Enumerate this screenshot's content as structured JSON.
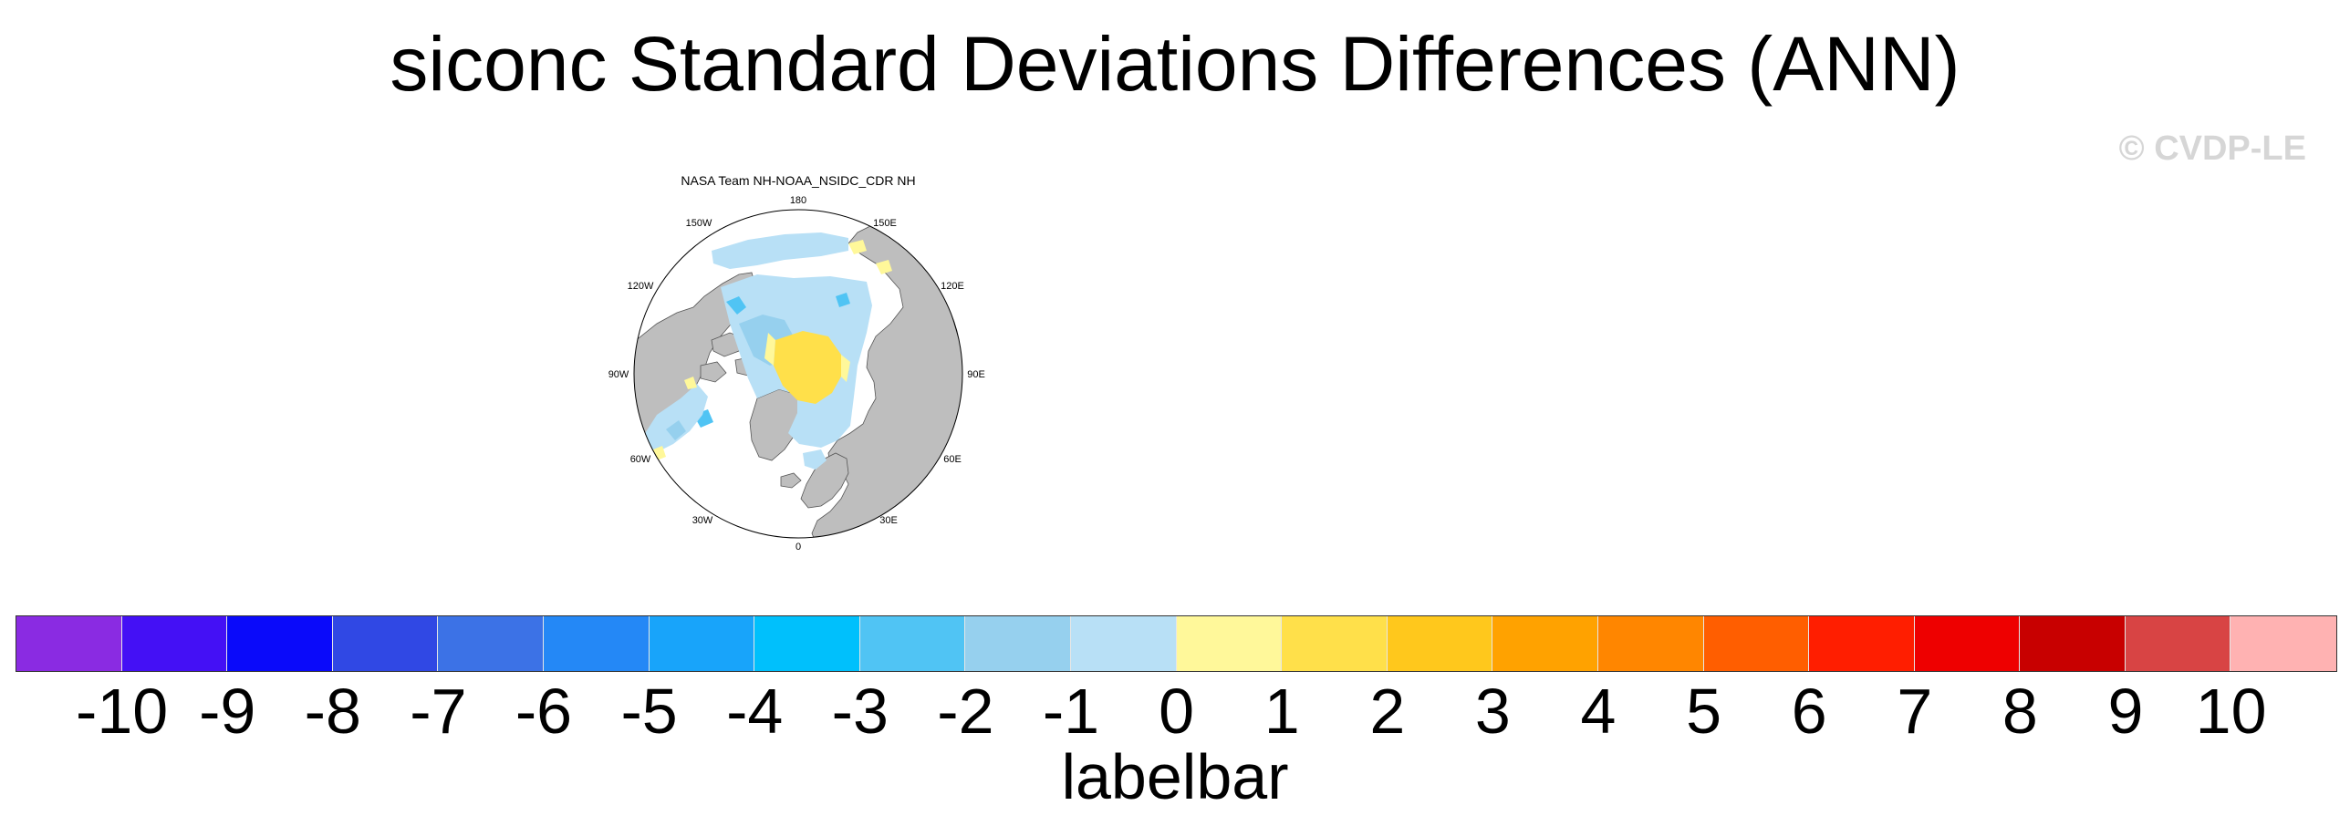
{
  "figure": {
    "title": "siconc Standard Deviations Differences (ANN)",
    "watermark": "© CVDP-LE"
  },
  "panel": {
    "title": "NASA Team NH-NOAA_NSIDC_CDR NH",
    "projection": "polar-stereographic-north",
    "land_color": "#bebebe",
    "longitude_labels": [
      "180",
      "150E",
      "120E",
      "90E",
      "60E",
      "30E",
      "0",
      "30W",
      "60W",
      "90W",
      "120W",
      "150W"
    ]
  },
  "labelbar": {
    "label": "labelbar",
    "colors": [
      "#8a2be2",
      "#4410f5",
      "#0a0afa",
      "#3048e4",
      "#3c72e6",
      "#2488f6",
      "#18a4fa",
      "#00c0fc",
      "#50c4f4",
      "#96d0ee",
      "#b8e0f6",
      "#fff89a",
      "#ffe04a",
      "#ffc81c",
      "#ffa200",
      "#ff8600",
      "#ff5e00",
      "#ff1e00",
      "#ee0000",
      "#c80000",
      "#d84444",
      "#ffb2b2"
    ],
    "ticks": [
      "-10",
      "-9",
      "-8",
      "-7",
      "-6",
      "-5",
      "-4",
      "-3",
      "-2",
      "-1",
      "0",
      "1",
      "2",
      "3",
      "4",
      "5",
      "6",
      "7",
      "8",
      "9",
      "10"
    ]
  }
}
